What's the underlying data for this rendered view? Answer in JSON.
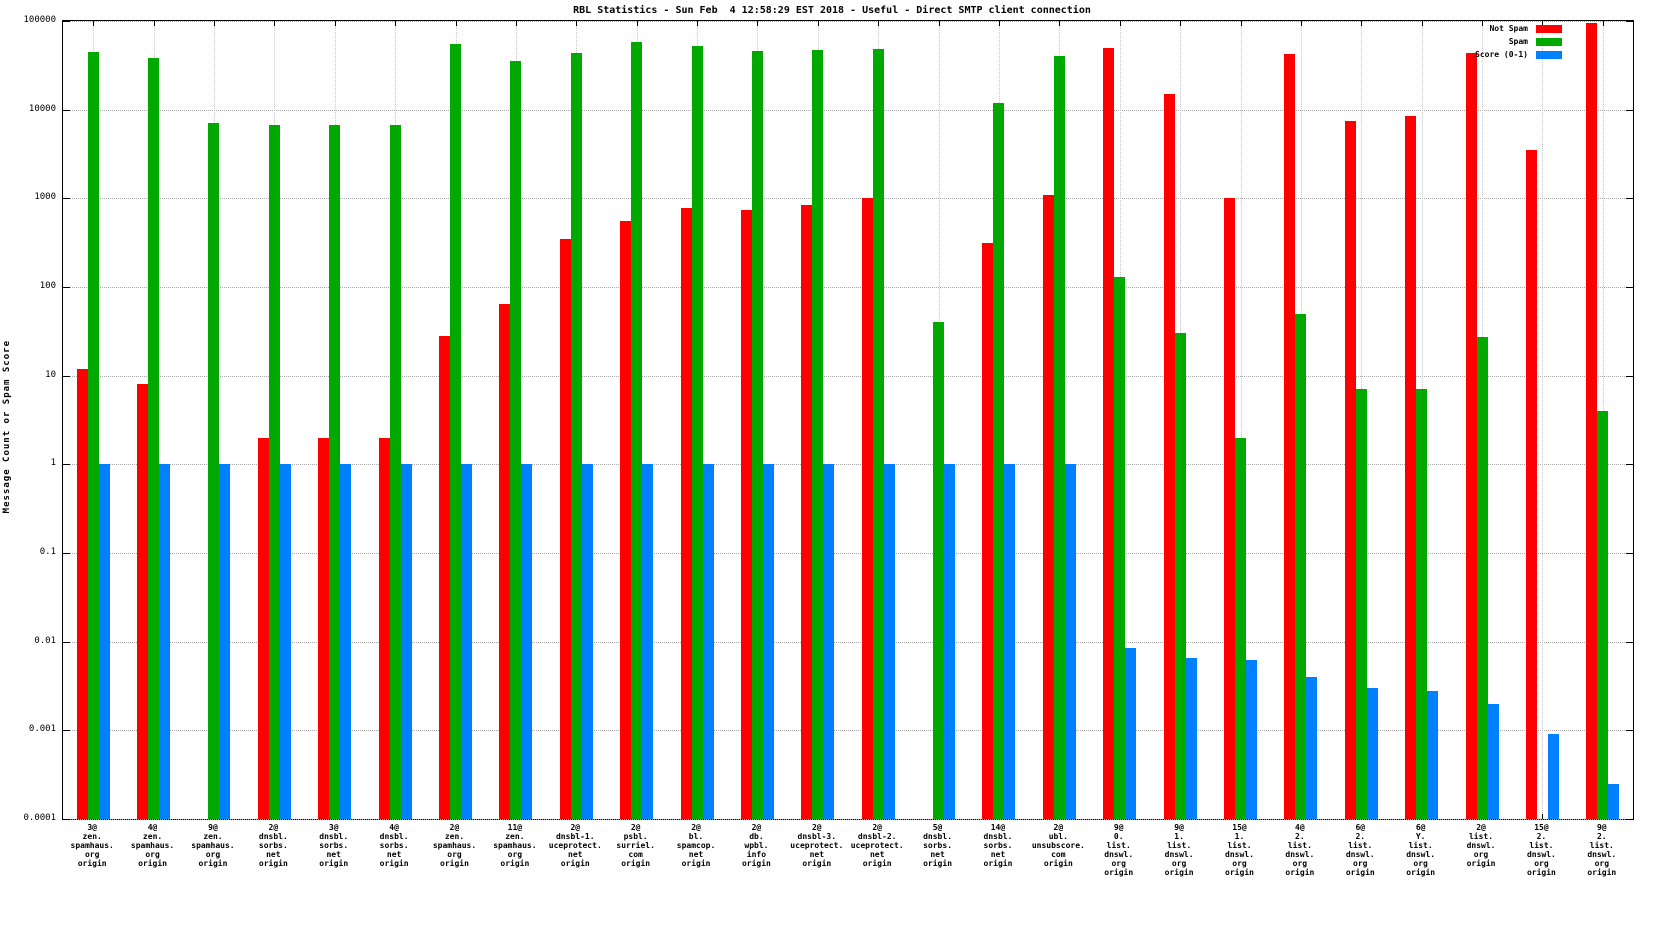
{
  "chart_data": {
    "type": "bar",
    "title": "RBL Statistics - Sun Feb  4 12:58:29 EST 2018 - Useful - Direct SMTP client connection",
    "ylabel": "Message Count or Spam Score",
    "yscale": "log",
    "ylim": [
      0.0001,
      100000
    ],
    "ytick_labels": [
      "100000",
      "10000",
      "1000",
      "100",
      "10",
      "1",
      "0.1",
      "0.01",
      "0.001",
      "0.0001"
    ],
    "grid": true,
    "legend_position": "top-right",
    "categories": [
      "3@\nzen.\nspamhaus.\norg\norigin",
      "4@\nzen.\nspamhaus.\norg\norigin",
      "9@\nzen.\nspamhaus.\norg\norigin",
      "2@\ndnsbl.\nsorbs.\nnet\norigin",
      "3@\ndnsbl.\nsorbs.\nnet\norigin",
      "4@\ndnsbl.\nsorbs.\nnet\norigin",
      "2@\nzen.\nspamhaus.\norg\norigin",
      "11@\nzen.\nspamhaus.\norg\norigin",
      "2@\ndnsbl-1.\nuceprotect.\nnet\norigin",
      "2@\npsbl.\nsurriel.\ncom\norigin",
      "2@\nbl.\nspamcop.\nnet\norigin",
      "2@\ndb.\nwpbl.\ninfo\norigin",
      "2@\ndnsbl-3.\nuceprotect.\nnet\norigin",
      "2@\ndnsbl-2.\nuceprotect.\nnet\norigin",
      "5@\ndnsbl.\nsorbs.\nnet\norigin",
      "14@\ndnsbl.\nsorbs.\nnet\norigin",
      "2@\nubl.\nunsubscore.\ncom\norigin",
      "9@\n0.\nlist.\ndnswl.\norg\norigin",
      "9@\n1.\nlist.\ndnswl.\norg\norigin",
      "15@\n1.\nlist.\ndnswl.\norg\norigin",
      "4@\n2.\nlist.\ndnswl.\norg\norigin",
      "6@\n2.\nlist.\ndnswl.\norg\norigin",
      "6@\nY.\nlist.\ndnswl.\norg\norigin",
      "2@\nlist.\ndnswl.\norg\norigin",
      "15@\n2.\nlist.\ndnswl.\norg\norigin",
      "9@\n2.\nlist.\ndnswl.\norg\norigin"
    ],
    "series": [
      {
        "name": "Not Spam",
        "color": "#ff0000",
        "values": [
          12,
          8,
          null,
          2,
          2,
          2,
          28,
          65,
          350,
          550,
          780,
          730,
          850,
          1000,
          null,
          310,
          1100,
          50000,
          15000,
          1000,
          42000,
          7500,
          8500,
          44000,
          3500,
          95000
        ]
      },
      {
        "name": "Spam",
        "color": "#00a800",
        "values": [
          45000,
          38000,
          7000,
          6800,
          6800,
          6800,
          55000,
          35000,
          43000,
          58000,
          52000,
          46000,
          47000,
          48000,
          40,
          12000,
          40000,
          130,
          30,
          2,
          50,
          7,
          7,
          27,
          null,
          4
        ]
      },
      {
        "name": "Score (0-1)",
        "color": "#0080ff",
        "values": [
          1,
          1,
          1,
          1,
          1,
          1,
          1,
          1,
          1,
          1,
          1,
          1,
          1,
          1,
          1,
          1,
          1,
          0.0085,
          0.0065,
          0.0062,
          0.004,
          0.003,
          0.0028,
          0.002,
          0.0009,
          0.00025
        ]
      }
    ]
  }
}
